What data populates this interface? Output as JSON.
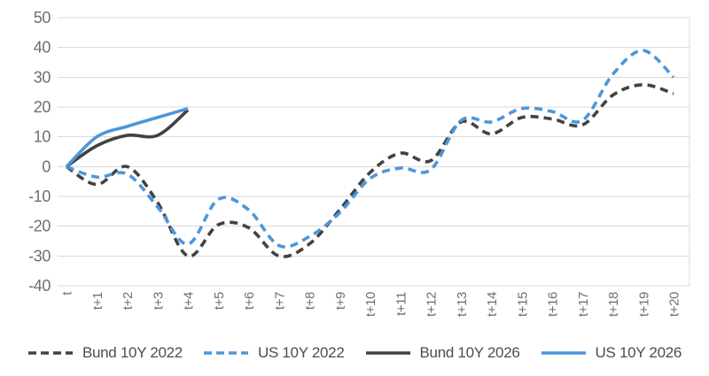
{
  "chart_data": {
    "type": "line",
    "title": "",
    "xlabel": "",
    "ylabel": "",
    "x_categories": [
      "t",
      "t+1",
      "t+2",
      "t+3",
      "t+4",
      "t+5",
      "t+6",
      "t+7",
      "t+8",
      "t+9",
      "t+10",
      "t+11",
      "t+12",
      "t+13",
      "t+14",
      "t+15",
      "t+16",
      "t+17",
      "t+18",
      "t+19",
      "t+20"
    ],
    "y_ticks": [
      50,
      40,
      30,
      20,
      10,
      0,
      -10,
      -20,
      -30,
      -40
    ],
    "ylim": [
      -40,
      50
    ],
    "grid": "horizontal",
    "legend_position": "bottom",
    "smooth": true,
    "series": [
      {
        "name": "Bund 10Y 2022",
        "style": "dashed",
        "color": "#424242",
        "values": [
          0,
          -6,
          0,
          -12,
          -30,
          -19.5,
          -20.5,
          -30,
          -26,
          -14.5,
          -2,
          4.5,
          2,
          15,
          11,
          16.5,
          16,
          14,
          24,
          27.5,
          24.5
        ]
      },
      {
        "name": "US 10Y 2022",
        "style": "dashed",
        "color": "#4e96db",
        "values": [
          0,
          -3.5,
          -2.5,
          -13.5,
          -26,
          -11,
          -14.5,
          -26.5,
          -23.5,
          -15.5,
          -4,
          -0.5,
          -1,
          15.5,
          15,
          19.5,
          18.5,
          15.5,
          31,
          39,
          30
        ]
      },
      {
        "name": "Bund 10Y 2026",
        "style": "solid",
        "color": "#424242",
        "values": [
          0,
          7,
          10.5,
          10.5,
          19
        ]
      },
      {
        "name": "US 10Y 2026",
        "style": "solid",
        "color": "#4e96db",
        "values": [
          0,
          10,
          13.5,
          16.5,
          19.5
        ]
      }
    ]
  },
  "colors": {
    "gridline": "#d9d9d9",
    "axis_tick_text": "#6f6f6f",
    "legend_text": "#4d4d4d",
    "background": "#ffffff"
  }
}
